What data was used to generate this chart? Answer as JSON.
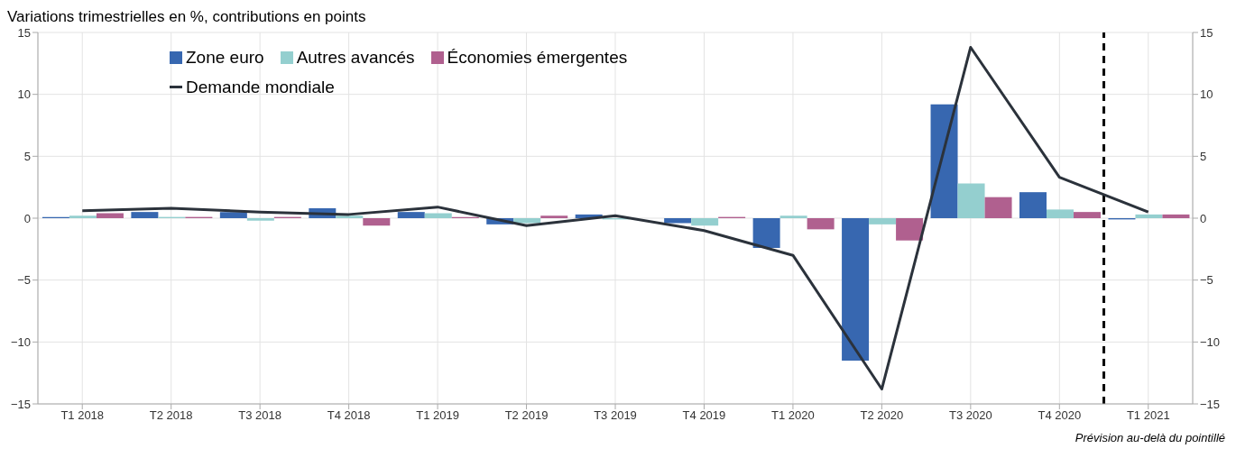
{
  "chart_data": {
    "type": "bar",
    "title": "Variations trimestrielles en %, contributions en points",
    "categories": [
      "T1 2018",
      "T2 2018",
      "T3 2018",
      "T4 2018",
      "T1 2019",
      "T2 2019",
      "T3 2019",
      "T4 2019",
      "T1 2020",
      "T2 2020",
      "T3 2020",
      "T4 2020",
      "T1 2021"
    ],
    "series": [
      {
        "name": "Zone euro",
        "color": "#3767b0",
        "values": [
          0.1,
          0.5,
          0.5,
          0.8,
          0.5,
          -0.5,
          0.3,
          -0.4,
          -2.4,
          -11.5,
          9.2,
          2.1,
          -0.1
        ]
      },
      {
        "name": "Autres avancés",
        "color": "#94cfcf",
        "values": [
          0.2,
          0.1,
          -0.2,
          0.2,
          0.4,
          -0.4,
          -0.1,
          -0.6,
          0.2,
          -0.5,
          2.8,
          0.7,
          0.3
        ]
      },
      {
        "name": "Économies émergentes",
        "color": "#b0608f",
        "values": [
          0.4,
          0.1,
          0.1,
          -0.6,
          0.1,
          0.2,
          0.0,
          0.1,
          -0.9,
          -1.8,
          1.7,
          0.5,
          0.3
        ]
      },
      {
        "name": "Demande mondiale",
        "type": "line",
        "color": "#2b323b",
        "values": [
          0.6,
          0.8,
          0.5,
          0.3,
          0.9,
          -0.6,
          0.2,
          -1.0,
          -3.0,
          -13.8,
          13.8,
          3.3,
          0.5
        ]
      }
    ],
    "ylim": [
      -15,
      15
    ],
    "yticks": [
      {
        "value": -15,
        "label": "−15"
      },
      {
        "value": -10,
        "label": "−10"
      },
      {
        "value": -5,
        "label": "−5"
      },
      0,
      5,
      10,
      15
    ],
    "y2lim": [
      -15,
      15
    ],
    "y2ticks": [
      {
        "value": -15,
        "label": "−15"
      },
      {
        "value": -10,
        "label": "−10"
      },
      {
        "value": -5,
        "label": "−5"
      },
      0,
      5,
      10,
      15
    ],
    "ref_lines": [
      {
        "axis": "x",
        "value": "T4 2020",
        "color": "#000000",
        "line_style": "dashed"
      }
    ],
    "annotations": [
      "Prévision au-delà du pointillé"
    ],
    "grid": true,
    "legend": "top left"
  }
}
